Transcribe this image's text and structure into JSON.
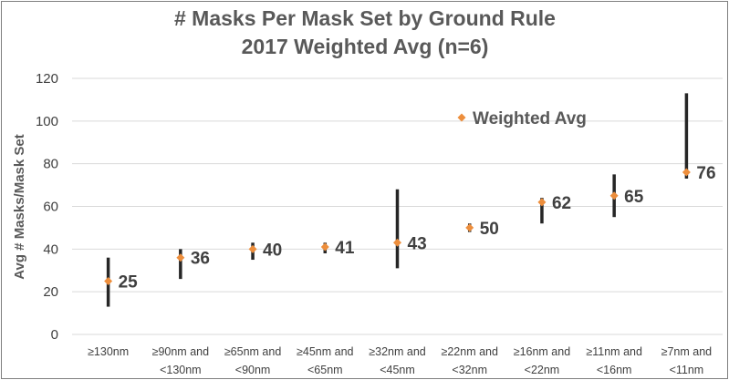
{
  "chart_data": {
    "type": "scatter",
    "title": [
      "# Masks Per Mask Set by Ground Rule",
      "2017 Weighted Avg (n=6)"
    ],
    "xlabel": "",
    "ylabel": "Avg # Masks/Mask Set",
    "ylim": [
      0,
      120
    ],
    "yticks": [
      0,
      20,
      40,
      60,
      80,
      100,
      120
    ],
    "grid": true,
    "legend_position": "top-center",
    "categories": [
      [
        "≥130nm",
        ""
      ],
      [
        "≥90nm and",
        "<130nm"
      ],
      [
        "≥65nm and",
        "<90nm"
      ],
      [
        "≥45nm and",
        "<65nm"
      ],
      [
        "≥32nm and",
        "<45nm"
      ],
      [
        "≥22nm and",
        "<32nm"
      ],
      [
        "≥16nm and",
        "<22nm"
      ],
      [
        "≥11nm and",
        "<16nm"
      ],
      [
        "≥7nm  and",
        "<11nm"
      ]
    ],
    "series": [
      {
        "name": "Weighted Avg",
        "color": "#ED8E3C",
        "marker": "diamond",
        "values": [
          25,
          36,
          40,
          41,
          43,
          50,
          62,
          65,
          76
        ],
        "labels": [
          "25",
          "36",
          "40",
          "41",
          "43",
          "50",
          "62",
          "65",
          "76"
        ]
      }
    ],
    "ranges": {
      "color": "#262626",
      "low": [
        13,
        26,
        35,
        38,
        31,
        48,
        52,
        55,
        73
      ],
      "high": [
        36,
        40,
        43,
        43,
        68,
        52,
        64,
        75,
        113
      ]
    },
    "gridline_color": "#d9d9d9"
  }
}
